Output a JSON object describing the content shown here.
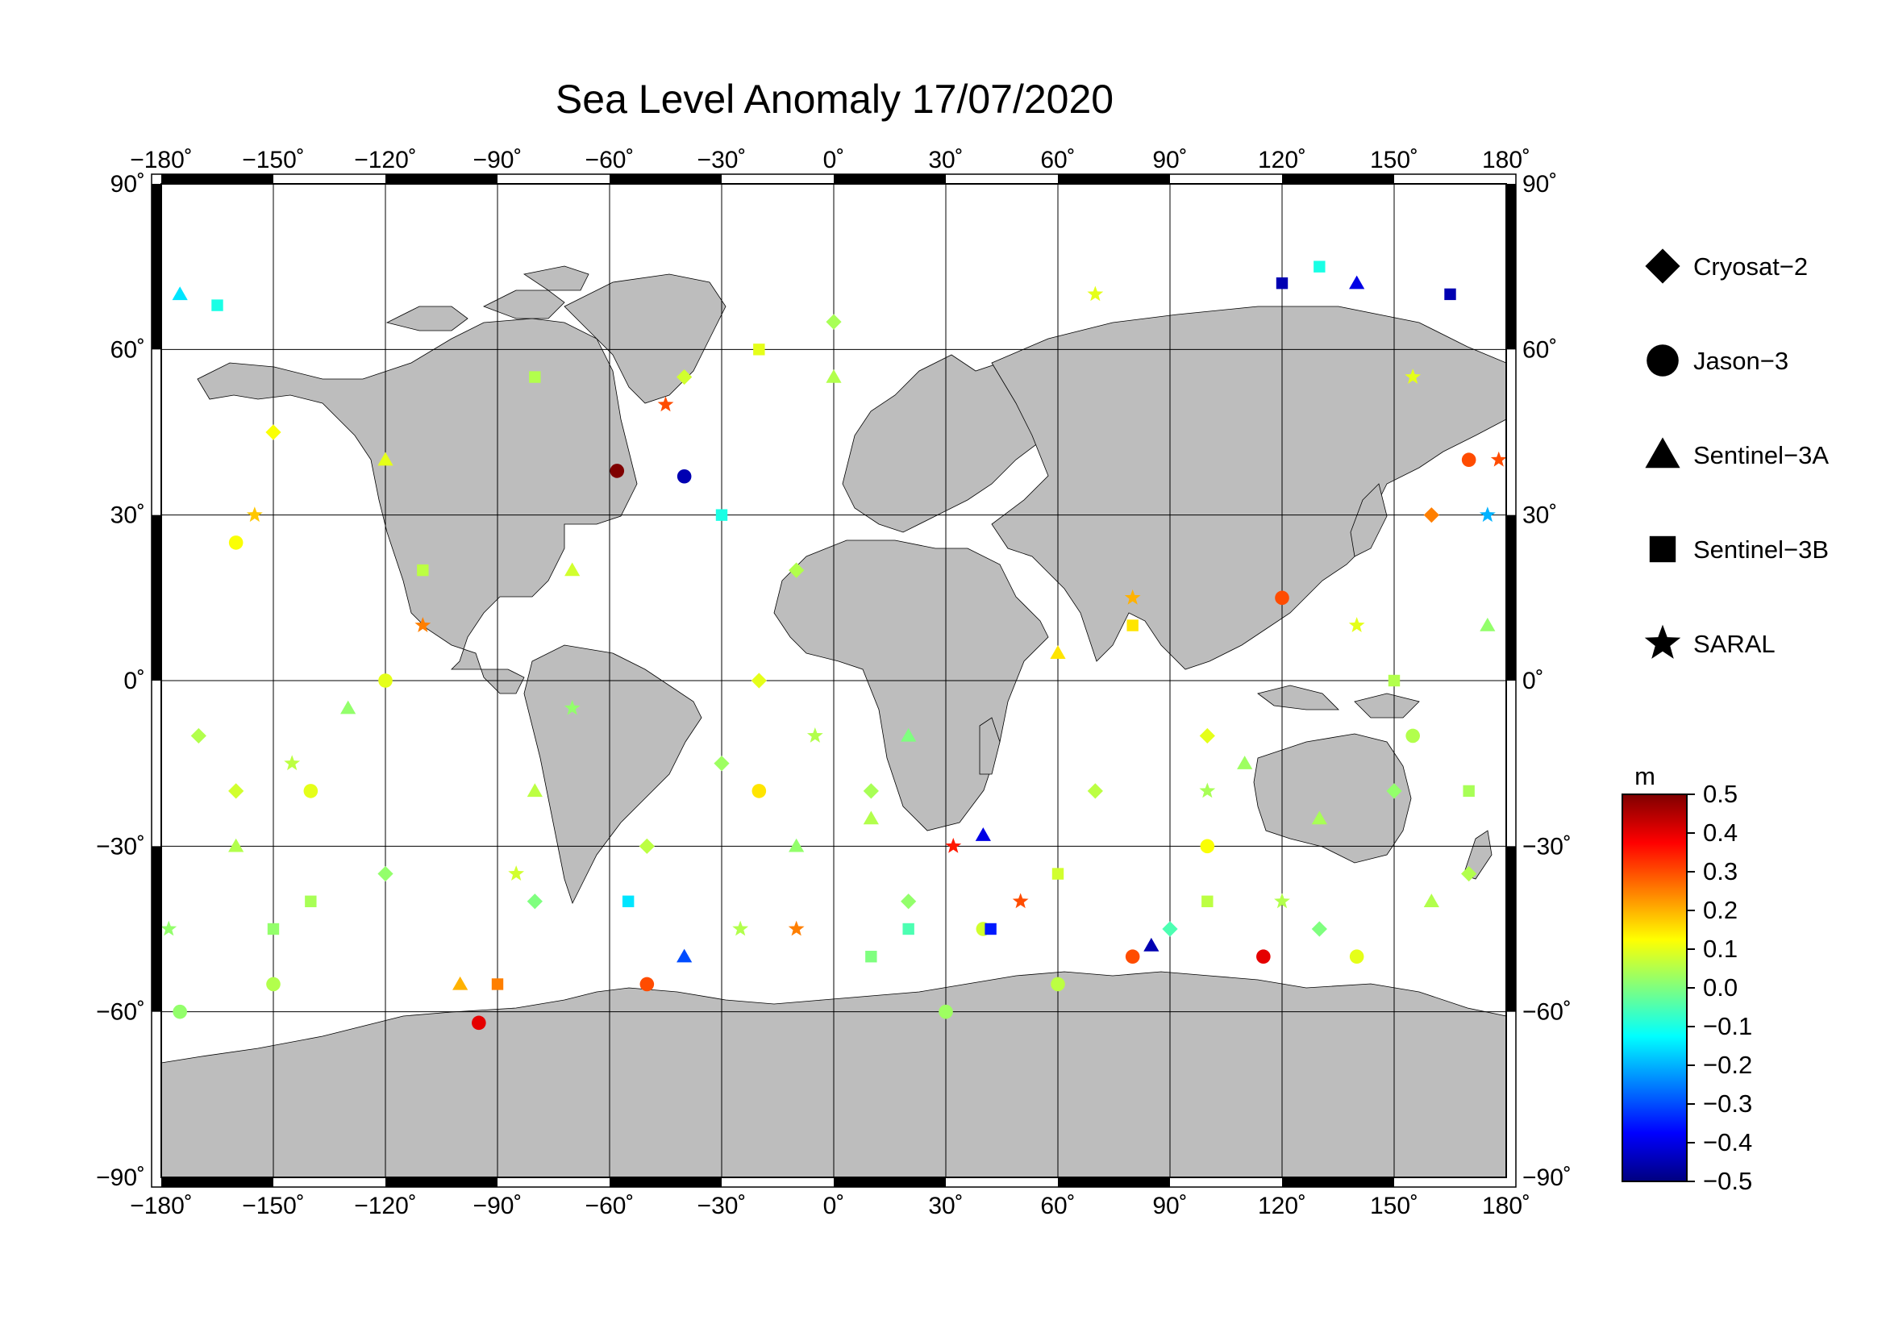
{
  "title": "Sea Level Anomaly 17/07/2020",
  "axes": {
    "x_ticks": [
      "−180˚",
      "−150˚",
      "−120˚",
      "−90˚",
      "−60˚",
      "−30˚",
      "0˚",
      "30˚",
      "60˚",
      "90˚",
      "120˚",
      "150˚",
      "180˚"
    ],
    "x_values": [
      -180,
      -150,
      -120,
      -90,
      -60,
      -30,
      0,
      30,
      60,
      90,
      120,
      150,
      180
    ],
    "y_ticks_left": [
      "90˚",
      "60˚",
      "30˚",
      "0˚",
      "−30˚",
      "−60˚",
      "−90˚"
    ],
    "y_ticks_right": [
      "90˚",
      "60˚",
      "30˚",
      "0˚",
      "−30˚",
      "−60˚",
      "−90˚"
    ],
    "y_values": [
      90,
      60,
      30,
      0,
      -30,
      -60,
      -90
    ],
    "xlim": [
      -180,
      180
    ],
    "ylim": [
      -90,
      90
    ],
    "grid": true
  },
  "legend": {
    "placement": "right",
    "items": [
      {
        "label": "Cryosat−2",
        "marker": "diamond"
      },
      {
        "label": "Jason−3",
        "marker": "circle"
      },
      {
        "label": "Sentinel−3A",
        "marker": "triangle"
      },
      {
        "label": "Sentinel−3B",
        "marker": "square"
      },
      {
        "label": "SARAL",
        "marker": "star"
      }
    ]
  },
  "colorbar": {
    "unit": "m",
    "ticks": [
      "0.5",
      "0.4",
      "0.3",
      "0.2",
      "0.1",
      "0.0",
      "−0.1",
      "−0.2",
      "−0.3",
      "−0.4",
      "−0.5"
    ],
    "tick_values": [
      0.5,
      0.4,
      0.3,
      0.2,
      0.1,
      0.0,
      -0.1,
      -0.2,
      -0.3,
      -0.4,
      -0.5
    ],
    "range": [
      -0.5,
      0.5
    ],
    "colormap": [
      "#00007f",
      "#0000ff",
      "#007fff",
      "#00ffff",
      "#7fff7f",
      "#ffff00",
      "#ff7f00",
      "#ff0000",
      "#7f0000"
    ]
  },
  "colors": {
    "land": "#bdbdbd",
    "ocean": "#ffffff",
    "frame_dark": "#000000",
    "grid": "#000000"
  },
  "chart_data": {
    "type": "scatter",
    "xlabel": "",
    "ylabel": "",
    "xlim": [
      -180,
      180
    ],
    "ylim": [
      -90,
      90
    ],
    "series": [
      {
        "name": "Cryosat−2",
        "marker": "diamond",
        "points": [
          [
            -170,
            -10,
            0.05
          ],
          [
            -160,
            -20,
            0.08
          ],
          [
            -120,
            -35,
            0.02
          ],
          [
            -80,
            -40,
            0.0
          ],
          [
            -50,
            -30,
            0.06
          ],
          [
            -30,
            -15,
            0.03
          ],
          [
            -20,
            0,
            0.1
          ],
          [
            -10,
            20,
            0.05
          ],
          [
            10,
            -20,
            0.04
          ],
          [
            20,
            -40,
            0.02
          ],
          [
            70,
            -20,
            0.06
          ],
          [
            90,
            -45,
            -0.05
          ],
          [
            100,
            -10,
            0.1
          ],
          [
            130,
            -45,
            0.0
          ],
          [
            150,
            -20,
            0.02
          ],
          [
            170,
            -35,
            0.05
          ],
          [
            -40,
            55,
            0.08
          ],
          [
            0,
            65,
            0.04
          ],
          [
            -150,
            45,
            0.12
          ],
          [
            160,
            30,
            0.25
          ]
        ]
      },
      {
        "name": "Jason−3",
        "marker": "circle",
        "points": [
          [
            -175,
            -60,
            0.02
          ],
          [
            -150,
            -55,
            0.05
          ],
          [
            -140,
            -20,
            0.1
          ],
          [
            -95,
            -62,
            0.4
          ],
          [
            -58,
            38,
            0.5
          ],
          [
            -40,
            37,
            -0.45
          ],
          [
            -50,
            -55,
            0.3
          ],
          [
            -20,
            -20,
            0.15
          ],
          [
            40,
            -45,
            0.08
          ],
          [
            60,
            -55,
            0.06
          ],
          [
            80,
            -50,
            0.3
          ],
          [
            100,
            -30,
            0.12
          ],
          [
            115,
            -50,
            0.4
          ],
          [
            140,
            -50,
            0.1
          ],
          [
            155,
            -10,
            0.05
          ],
          [
            170,
            40,
            0.3
          ],
          [
            -160,
            25,
            0.12
          ],
          [
            -120,
            0,
            0.1
          ],
          [
            30,
            -60,
            0.03
          ],
          [
            120,
            15,
            0.3
          ]
        ]
      },
      {
        "name": "Sentinel−3A",
        "marker": "triangle",
        "points": [
          [
            -175,
            70,
            -0.15
          ],
          [
            -160,
            -30,
            0.05
          ],
          [
            -130,
            -5,
            0.02
          ],
          [
            -100,
            -55,
            0.2
          ],
          [
            -70,
            20,
            0.08
          ],
          [
            -40,
            -50,
            -0.3
          ],
          [
            -10,
            -30,
            0.02
          ],
          [
            10,
            -25,
            0.05
          ],
          [
            40,
            -28,
            -0.4
          ],
          [
            85,
            -48,
            -0.45
          ],
          [
            110,
            -15,
            0.03
          ],
          [
            140,
            72,
            -0.4
          ],
          [
            160,
            -40,
            0.05
          ],
          [
            175,
            10,
            0.02
          ],
          [
            60,
            5,
            0.15
          ],
          [
            -120,
            40,
            0.1
          ],
          [
            20,
            -10,
            0.0
          ],
          [
            0,
            55,
            0.05
          ],
          [
            130,
            -25,
            0.04
          ],
          [
            -80,
            -20,
            0.06
          ]
        ]
      },
      {
        "name": "Sentinel−3B",
        "marker": "square",
        "points": [
          [
            -165,
            68,
            -0.1
          ],
          [
            -140,
            -40,
            0.04
          ],
          [
            -110,
            20,
            0.06
          ],
          [
            -90,
            -55,
            0.25
          ],
          [
            -55,
            -40,
            -0.15
          ],
          [
            -30,
            30,
            -0.1
          ],
          [
            10,
            -50,
            0.0
          ],
          [
            42,
            -45,
            -0.35
          ],
          [
            60,
            -35,
            0.08
          ],
          [
            100,
            -40,
            0.06
          ],
          [
            120,
            72,
            -0.45
          ],
          [
            130,
            75,
            -0.1
          ],
          [
            165,
            70,
            -0.45
          ],
          [
            170,
            -20,
            0.04
          ],
          [
            -80,
            55,
            0.05
          ],
          [
            -20,
            60,
            0.1
          ],
          [
            80,
            10,
            0.15
          ],
          [
            150,
            0,
            0.05
          ],
          [
            -150,
            -45,
            0.02
          ],
          [
            20,
            -45,
            -0.05
          ]
        ]
      },
      {
        "name": "SARAL",
        "marker": "star",
        "points": [
          [
            -178,
            -45,
            0.02
          ],
          [
            -155,
            30,
            0.18
          ],
          [
            -145,
            -15,
            0.06
          ],
          [
            -110,
            10,
            0.25
          ],
          [
            -85,
            -35,
            0.08
          ],
          [
            -45,
            50,
            0.3
          ],
          [
            -25,
            -45,
            0.05
          ],
          [
            -10,
            -45,
            0.25
          ],
          [
            32,
            -30,
            0.35
          ],
          [
            50,
            -40,
            0.3
          ],
          [
            80,
            15,
            0.2
          ],
          [
            120,
            -40,
            0.05
          ],
          [
            155,
            55,
            0.1
          ],
          [
            175,
            30,
            -0.2
          ],
          [
            178,
            40,
            0.3
          ],
          [
            70,
            70,
            0.1
          ],
          [
            -5,
            -10,
            0.05
          ],
          [
            140,
            10,
            0.1
          ],
          [
            -70,
            -5,
            0.02
          ],
          [
            100,
            -20,
            0.04
          ]
        ]
      }
    ]
  }
}
